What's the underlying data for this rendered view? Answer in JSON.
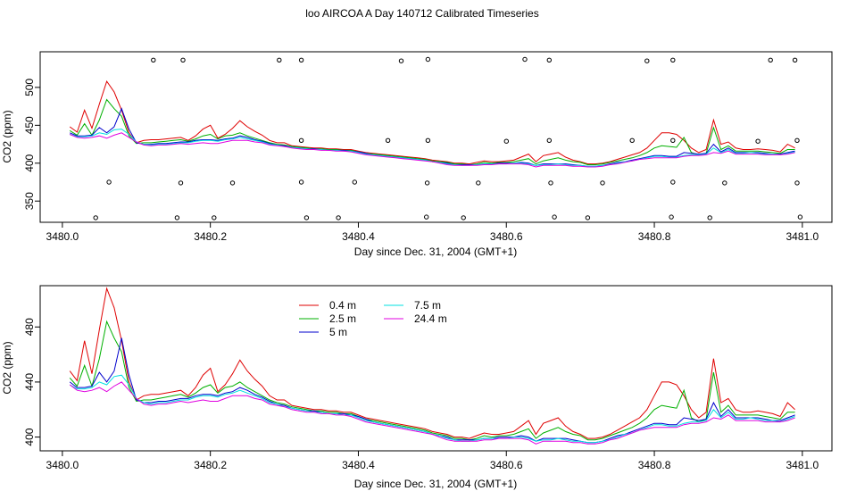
{
  "figure": {
    "title": "loo AIRCOA A  Day 140712  Calibrated Timeseries"
  },
  "chart_data": [
    {
      "type": "line",
      "xlabel": "Day since Dec. 31, 2004 (GMT+1)",
      "ylabel": "CO2 (ppm)",
      "xlim": [
        3479.97,
        3481.04
      ],
      "ylim": [
        322,
        547
      ],
      "x_ticks": [
        3480.0,
        3480.2,
        3480.4,
        3480.6,
        3480.8,
        3481.0
      ],
      "x_tick_labels": [
        "3480.0",
        "3480.2",
        "3480.4",
        "3480.6",
        "3480.8",
        "3481.0"
      ],
      "y_ticks": [
        350,
        400,
        450,
        500
      ],
      "y_tick_labels": [
        "350",
        "400",
        "450",
        "500"
      ],
      "grid": false,
      "series_ref": "shared",
      "flag_points": {
        "marker": "open-circle",
        "x_535": [
          3480.123,
          3480.163,
          3480.293,
          3480.323,
          3480.458,
          3480.494,
          3480.625,
          3480.658,
          3480.79,
          3480.825,
          3480.957,
          3480.99
        ],
        "y_535": [
          536,
          536,
          536,
          536,
          535,
          537,
          537,
          536,
          535,
          536,
          536,
          536
        ],
        "x_430": [
          3480.323,
          3480.44,
          3480.494,
          3480.6,
          3480.658,
          3480.77,
          3480.825,
          3480.94,
          3480.993
        ],
        "y_430": [
          430,
          430,
          430,
          429,
          430,
          430,
          430,
          429,
          430
        ],
        "x_375": [
          3480.063,
          3480.16,
          3480.23,
          3480.323,
          3480.395,
          3480.493,
          3480.562,
          3480.66,
          3480.73,
          3480.825,
          3480.895,
          3480.993
        ],
        "y_375": [
          375,
          374,
          374,
          375,
          375,
          374,
          374,
          374,
          374,
          375,
          374,
          374
        ],
        "x_330": [
          3480.045,
          3480.155,
          3480.205,
          3480.33,
          3480.373,
          3480.492,
          3480.542,
          3480.665,
          3480.71,
          3480.823,
          3480.875,
          3480.997
        ],
        "y_330": [
          328,
          328,
          328,
          328,
          328,
          329,
          328,
          329,
          328,
          329,
          328,
          329
        ]
      }
    },
    {
      "type": "line",
      "xlabel": "Day since Dec. 31, 2004 (GMT+1)",
      "ylabel": "CO2 (ppm)",
      "xlim": [
        3479.97,
        3481.04
      ],
      "ylim": [
        390,
        510
      ],
      "x_ticks": [
        3480.0,
        3480.2,
        3480.4,
        3480.6,
        3480.8,
        3481.0
      ],
      "x_tick_labels": [
        "3480.0",
        "3480.2",
        "3480.4",
        "3480.6",
        "3480.8",
        "3481.0"
      ],
      "y_ticks": [
        400,
        440,
        480
      ],
      "y_tick_labels": [
        "400",
        "440",
        "480"
      ],
      "grid": false,
      "legend": "top-left",
      "series_ref": "shared"
    }
  ],
  "series": [
    {
      "name": "0.4 m",
      "color": "#DF0000",
      "x": [
        3480.01,
        3480.02,
        3480.03,
        3480.04,
        3480.05,
        3480.06,
        3480.07,
        3480.08,
        3480.09,
        3480.1,
        3480.11,
        3480.12,
        3480.13,
        3480.14,
        3480.15,
        3480.16,
        3480.17,
        3480.18,
        3480.19,
        3480.2,
        3480.21,
        3480.22,
        3480.23,
        3480.24,
        3480.25,
        3480.26,
        3480.27,
        3480.28,
        3480.29,
        3480.3,
        3480.31,
        3480.32,
        3480.33,
        3480.34,
        3480.35,
        3480.36,
        3480.37,
        3480.38,
        3480.39,
        3480.4,
        3480.41,
        3480.42,
        3480.43,
        3480.44,
        3480.45,
        3480.46,
        3480.47,
        3480.48,
        3480.49,
        3480.5,
        3480.51,
        3480.52,
        3480.53,
        3480.54,
        3480.55,
        3480.56,
        3480.57,
        3480.58,
        3480.59,
        3480.6,
        3480.61,
        3480.62,
        3480.63,
        3480.64,
        3480.65,
        3480.66,
        3480.67,
        3480.68,
        3480.69,
        3480.7,
        3480.71,
        3480.72,
        3480.73,
        3480.74,
        3480.75,
        3480.76,
        3480.77,
        3480.78,
        3480.79,
        3480.8,
        3480.81,
        3480.82,
        3480.83,
        3480.84,
        3480.85,
        3480.86,
        3480.87,
        3480.88,
        3480.89,
        3480.9,
        3480.91,
        3480.92,
        3480.93,
        3480.94,
        3480.95,
        3480.96,
        3480.97,
        3480.98,
        3480.99
      ],
      "values": [
        448,
        441,
        470,
        446,
        478,
        508,
        494,
        470,
        440,
        427,
        430,
        431,
        431,
        432,
        433,
        434,
        430,
        436,
        445,
        450,
        433,
        438,
        446,
        456,
        448,
        442,
        437,
        430,
        427,
        427,
        423,
        422,
        421,
        420,
        420,
        419,
        419,
        418,
        418,
        416,
        414,
        413,
        412,
        411,
        410,
        409,
        408,
        407,
        406,
        404,
        403,
        402,
        400,
        400,
        399,
        401,
        403,
        402,
        402,
        403,
        404,
        408,
        412,
        402,
        410,
        412,
        414,
        408,
        404,
        402,
        399,
        399,
        400,
        402,
        405,
        408,
        411,
        414,
        420,
        430,
        440,
        440,
        438,
        430,
        420,
        414,
        418,
        457,
        425,
        428,
        420,
        418,
        418,
        419,
        418,
        417,
        415,
        425,
        420
      ]
    },
    {
      "name": "2.5 m",
      "color": "#00B000",
      "x": [
        3480.01,
        3480.02,
        3480.03,
        3480.04,
        3480.05,
        3480.06,
        3480.07,
        3480.08,
        3480.09,
        3480.1,
        3480.11,
        3480.12,
        3480.13,
        3480.14,
        3480.15,
        3480.16,
        3480.17,
        3480.18,
        3480.19,
        3480.2,
        3480.21,
        3480.22,
        3480.23,
        3480.24,
        3480.25,
        3480.26,
        3480.27,
        3480.28,
        3480.29,
        3480.3,
        3480.31,
        3480.32,
        3480.33,
        3480.34,
        3480.35,
        3480.36,
        3480.37,
        3480.38,
        3480.39,
        3480.4,
        3480.41,
        3480.42,
        3480.43,
        3480.44,
        3480.45,
        3480.46,
        3480.47,
        3480.48,
        3480.49,
        3480.5,
        3480.51,
        3480.52,
        3480.53,
        3480.54,
        3480.55,
        3480.56,
        3480.57,
        3480.58,
        3480.59,
        3480.6,
        3480.61,
        3480.62,
        3480.63,
        3480.64,
        3480.65,
        3480.66,
        3480.67,
        3480.68,
        3480.69,
        3480.7,
        3480.71,
        3480.72,
        3480.73,
        3480.74,
        3480.75,
        3480.76,
        3480.77,
        3480.78,
        3480.79,
        3480.8,
        3480.81,
        3480.82,
        3480.83,
        3480.84,
        3480.85,
        3480.86,
        3480.87,
        3480.88,
        3480.89,
        3480.9,
        3480.91,
        3480.92,
        3480.93,
        3480.94,
        3480.95,
        3480.96,
        3480.97,
        3480.98,
        3480.99
      ],
      "values": [
        443,
        437,
        452,
        437,
        457,
        484,
        472,
        462,
        436,
        426,
        427,
        427,
        428,
        429,
        430,
        431,
        429,
        432,
        436,
        438,
        432,
        436,
        437,
        440,
        436,
        433,
        430,
        427,
        425,
        424,
        422,
        421,
        420,
        419,
        419,
        418,
        418,
        417,
        417,
        415,
        413,
        412,
        411,
        410,
        409,
        408,
        407,
        406,
        405,
        403,
        402,
        401,
        399,
        399,
        398,
        399,
        401,
        400,
        401,
        401,
        402,
        404,
        406,
        399,
        403,
        405,
        407,
        404,
        402,
        401,
        398,
        398,
        399,
        401,
        403,
        405,
        407,
        410,
        414,
        420,
        423,
        422,
        421,
        434,
        414,
        411,
        413,
        447,
        418,
        423,
        416,
        416,
        416,
        416,
        415,
        414,
        413,
        418,
        418
      ]
    },
    {
      "name": "5 m",
      "color": "#0000CC",
      "x": [
        3480.01,
        3480.02,
        3480.03,
        3480.04,
        3480.05,
        3480.06,
        3480.07,
        3480.08,
        3480.09,
        3480.1,
        3480.11,
        3480.12,
        3480.13,
        3480.14,
        3480.15,
        3480.16,
        3480.17,
        3480.18,
        3480.19,
        3480.2,
        3480.21,
        3480.22,
        3480.23,
        3480.24,
        3480.25,
        3480.26,
        3480.27,
        3480.28,
        3480.29,
        3480.3,
        3480.31,
        3480.32,
        3480.33,
        3480.34,
        3480.35,
        3480.36,
        3480.37,
        3480.38,
        3480.39,
        3480.4,
        3480.41,
        3480.42,
        3480.43,
        3480.44,
        3480.45,
        3480.46,
        3480.47,
        3480.48,
        3480.49,
        3480.5,
        3480.51,
        3480.52,
        3480.53,
        3480.54,
        3480.55,
        3480.56,
        3480.57,
        3480.58,
        3480.59,
        3480.6,
        3480.61,
        3480.62,
        3480.63,
        3480.64,
        3480.65,
        3480.66,
        3480.67,
        3480.68,
        3480.69,
        3480.7,
        3480.71,
        3480.72,
        3480.73,
        3480.74,
        3480.75,
        3480.76,
        3480.77,
        3480.78,
        3480.79,
        3480.8,
        3480.81,
        3480.82,
        3480.83,
        3480.84,
        3480.85,
        3480.86,
        3480.87,
        3480.88,
        3480.89,
        3480.9,
        3480.91,
        3480.92,
        3480.93,
        3480.94,
        3480.95,
        3480.96,
        3480.97,
        3480.98,
        3480.99
      ],
      "values": [
        440,
        436,
        436,
        437,
        447,
        440,
        448,
        472,
        445,
        427,
        425,
        425,
        426,
        426,
        427,
        428,
        428,
        430,
        431,
        431,
        430,
        432,
        433,
        436,
        434,
        431,
        429,
        426,
        424,
        423,
        421,
        420,
        419,
        419,
        418,
        417,
        417,
        417,
        416,
        415,
        413,
        411,
        410,
        409,
        408,
        407,
        406,
        405,
        404,
        402,
        401,
        400,
        398,
        398,
        398,
        398,
        399,
        399,
        400,
        400,
        400,
        401,
        400,
        397,
        399,
        399,
        399,
        399,
        398,
        397,
        396,
        396,
        397,
        399,
        401,
        402,
        404,
        406,
        408,
        410,
        410,
        409,
        409,
        414,
        413,
        412,
        413,
        425,
        415,
        420,
        414,
        414,
        414,
        414,
        413,
        412,
        412,
        414,
        416
      ]
    },
    {
      "name": "7.5 m",
      "color": "#00E0E0",
      "x": [
        3480.01,
        3480.02,
        3480.03,
        3480.04,
        3480.05,
        3480.06,
        3480.07,
        3480.08,
        3480.09,
        3480.1,
        3480.11,
        3480.12,
        3480.13,
        3480.14,
        3480.15,
        3480.16,
        3480.17,
        3480.18,
        3480.19,
        3480.2,
        3480.21,
        3480.22,
        3480.23,
        3480.24,
        3480.25,
        3480.26,
        3480.27,
        3480.28,
        3480.29,
        3480.3,
        3480.31,
        3480.32,
        3480.33,
        3480.34,
        3480.35,
        3480.36,
        3480.37,
        3480.38,
        3480.39,
        3480.4,
        3480.41,
        3480.42,
        3480.43,
        3480.44,
        3480.45,
        3480.46,
        3480.47,
        3480.48,
        3480.49,
        3480.5,
        3480.51,
        3480.52,
        3480.53,
        3480.54,
        3480.55,
        3480.56,
        3480.57,
        3480.58,
        3480.59,
        3480.6,
        3480.61,
        3480.62,
        3480.63,
        3480.64,
        3480.65,
        3480.66,
        3480.67,
        3480.68,
        3480.69,
        3480.7,
        3480.71,
        3480.72,
        3480.73,
        3480.74,
        3480.75,
        3480.76,
        3480.77,
        3480.78,
        3480.79,
        3480.8,
        3480.81,
        3480.82,
        3480.83,
        3480.84,
        3480.85,
        3480.86,
        3480.87,
        3480.88,
        3480.89,
        3480.9,
        3480.91,
        3480.92,
        3480.93,
        3480.94,
        3480.95,
        3480.96,
        3480.97,
        3480.98,
        3480.99
      ],
      "values": [
        438,
        435,
        435,
        436,
        440,
        438,
        444,
        445,
        438,
        428,
        425,
        424,
        425,
        425,
        426,
        427,
        427,
        429,
        430,
        430,
        429,
        431,
        432,
        434,
        432,
        430,
        428,
        425,
        424,
        422,
        421,
        420,
        419,
        418,
        418,
        417,
        417,
        416,
        416,
        414,
        412,
        411,
        410,
        409,
        408,
        407,
        406,
        405,
        404,
        402,
        401,
        399,
        398,
        397,
        397,
        398,
        399,
        399,
        399,
        399,
        400,
        400,
        399,
        397,
        398,
        398,
        399,
        398,
        397,
        397,
        396,
        396,
        397,
        398,
        400,
        402,
        403,
        405,
        407,
        409,
        409,
        408,
        408,
        410,
        411,
        411,
        412,
        420,
        414,
        418,
        413,
        413,
        414,
        413,
        412,
        412,
        411,
        413,
        415
      ]
    },
    {
      "name": "24.4 m",
      "color": "#E000E0",
      "x": [
        3480.01,
        3480.02,
        3480.03,
        3480.04,
        3480.05,
        3480.06,
        3480.07,
        3480.08,
        3480.09,
        3480.1,
        3480.11,
        3480.12,
        3480.13,
        3480.14,
        3480.15,
        3480.16,
        3480.17,
        3480.18,
        3480.19,
        3480.2,
        3480.21,
        3480.22,
        3480.23,
        3480.24,
        3480.25,
        3480.26,
        3480.27,
        3480.28,
        3480.29,
        3480.3,
        3480.31,
        3480.32,
        3480.33,
        3480.34,
        3480.35,
        3480.36,
        3480.37,
        3480.38,
        3480.39,
        3480.4,
        3480.41,
        3480.42,
        3480.43,
        3480.44,
        3480.45,
        3480.46,
        3480.47,
        3480.48,
        3480.49,
        3480.5,
        3480.51,
        3480.52,
        3480.53,
        3480.54,
        3480.55,
        3480.56,
        3480.57,
        3480.58,
        3480.59,
        3480.6,
        3480.61,
        3480.62,
        3480.63,
        3480.64,
        3480.65,
        3480.66,
        3480.67,
        3480.68,
        3480.69,
        3480.7,
        3480.71,
        3480.72,
        3480.73,
        3480.74,
        3480.75,
        3480.76,
        3480.77,
        3480.78,
        3480.79,
        3480.8,
        3480.81,
        3480.82,
        3480.83,
        3480.84,
        3480.85,
        3480.86,
        3480.87,
        3480.88,
        3480.89,
        3480.9,
        3480.91,
        3480.92,
        3480.93,
        3480.94,
        3480.95,
        3480.96,
        3480.97,
        3480.98,
        3480.99
      ],
      "values": [
        438,
        434,
        433,
        434,
        436,
        433,
        437,
        440,
        434,
        428,
        424,
        423,
        424,
        424,
        425,
        426,
        425,
        426,
        427,
        426,
        426,
        428,
        430,
        430,
        430,
        428,
        427,
        424,
        423,
        422,
        420,
        419,
        418,
        418,
        417,
        417,
        416,
        416,
        415,
        413,
        411,
        410,
        409,
        408,
        407,
        406,
        405,
        404,
        403,
        402,
        400,
        398,
        397,
        397,
        397,
        397,
        398,
        398,
        399,
        399,
        399,
        399,
        398,
        395,
        397,
        397,
        397,
        397,
        396,
        396,
        395,
        395,
        396,
        398,
        399,
        401,
        403,
        405,
        406,
        407,
        407,
        407,
        407,
        409,
        410,
        410,
        411,
        414,
        413,
        416,
        412,
        412,
        412,
        412,
        411,
        411,
        411,
        412,
        414
      ]
    }
  ]
}
